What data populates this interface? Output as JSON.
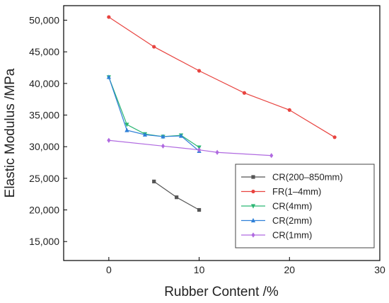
{
  "chart_data": {
    "type": "line",
    "title": "",
    "xlabel": "Rubber Content /%",
    "ylabel": "Elastic Modulus /MPa",
    "xlim": [
      -5,
      30
    ],
    "ylim": [
      12000,
      52300
    ],
    "xticks": [
      0,
      10,
      20,
      30
    ],
    "xtick_labels": [
      "0",
      "10",
      "20",
      "30"
    ],
    "yticks": [
      15000,
      20000,
      25000,
      30000,
      35000,
      40000,
      45000,
      50000
    ],
    "ytick_labels": [
      "15,000",
      "20,000",
      "25,000",
      "30,000",
      "35,000",
      "40,000",
      "45,000",
      "50,000"
    ],
    "grid": false,
    "legend_position": "bottom-right",
    "series": [
      {
        "name": "CR(200–850mm)",
        "color": "#555555",
        "marker": "square",
        "x": [
          5,
          7.5,
          10
        ],
        "y": [
          24500,
          22000,
          20000
        ]
      },
      {
        "name": "FR(1–4mm)",
        "color": "#e8433f",
        "marker": "circle",
        "x": [
          0,
          5,
          10,
          15,
          20,
          25
        ],
        "y": [
          50500,
          45800,
          42000,
          38500,
          35800,
          31500
        ]
      },
      {
        "name": "CR(4mm)",
        "color": "#2bb673",
        "marker": "triangle-down",
        "x": [
          0,
          2,
          4,
          6,
          8,
          10
        ],
        "y": [
          41000,
          33500,
          32000,
          31600,
          31800,
          29900
        ]
      },
      {
        "name": "CR(2mm)",
        "color": "#2f80d8",
        "marker": "triangle-up",
        "x": [
          0,
          2,
          4,
          6,
          8,
          10
        ],
        "y": [
          41000,
          32600,
          31900,
          31600,
          31700,
          29300
        ]
      },
      {
        "name": "CR(1mm)",
        "color": "#b06ae0",
        "marker": "diamond",
        "x": [
          0,
          6,
          10,
          12,
          18
        ],
        "y": [
          31000,
          30100,
          29500,
          29100,
          28600
        ]
      }
    ]
  }
}
